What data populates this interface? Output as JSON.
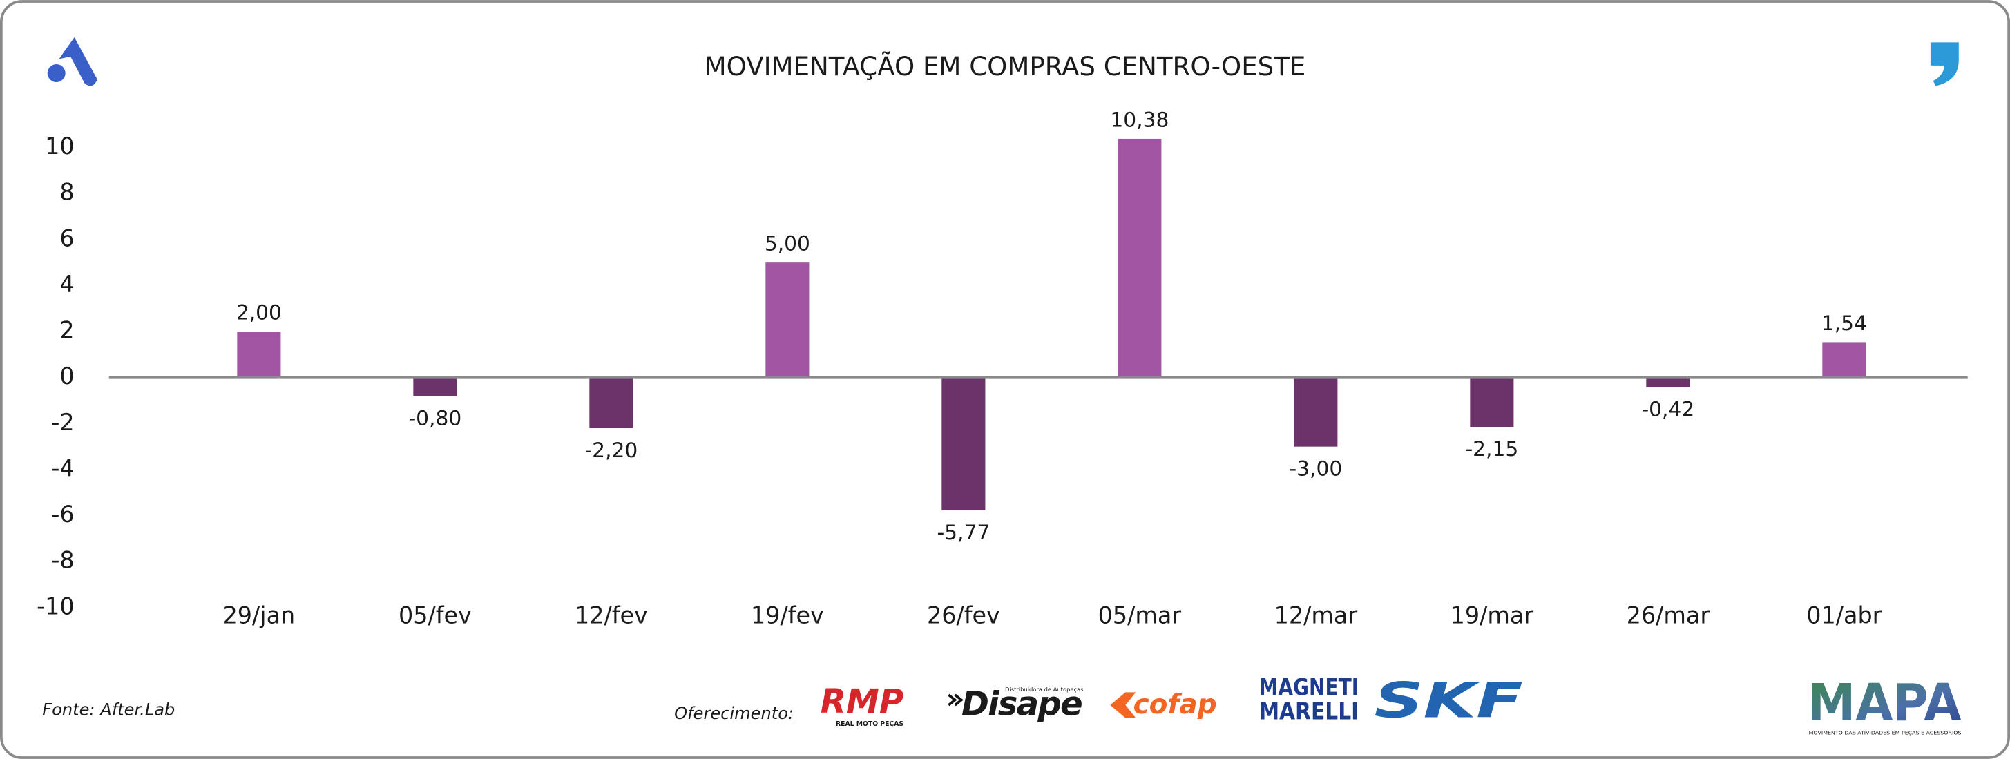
{
  "chart_data": {
    "type": "bar",
    "title": "MOVIMENTAÇÃO EM COMPRAS CENTRO-OESTE",
    "categories": [
      "29/jan",
      "05/fev",
      "12/fev",
      "19/fev",
      "26/fev",
      "05/mar",
      "12/mar",
      "19/mar",
      "26/mar",
      "01/abr"
    ],
    "values": [
      2.0,
      -0.8,
      -2.2,
      5.0,
      -5.77,
      10.38,
      -3.0,
      -2.15,
      -0.42,
      1.54
    ],
    "value_labels": [
      "2,00",
      "-0,80",
      "-2,20",
      "5,00",
      "-5,77",
      "10,38",
      "-3,00",
      "-2,15",
      "-0,42",
      "1,54"
    ],
    "color": "#a155a3",
    "negative_color": "#6b3369",
    "ylim": [
      -10,
      10
    ],
    "yticks": [
      -10,
      -8,
      -6,
      -4,
      -2,
      0,
      2,
      4,
      6,
      8,
      10
    ],
    "grid": false
  },
  "footer": {
    "source": "Fonte: After.Lab",
    "sponsor_label": "Oferecimento:",
    "sponsors": {
      "rmp": "RMP",
      "rmp_sub": "REAL MOTO PEÇAS",
      "disape": "Disape",
      "disape_sub": "Distribuidora de Autopeças",
      "cofap": "cofap",
      "magneti": "MAGNETI",
      "marelli": "MARELLI",
      "skf": "SKF"
    },
    "brand": "MAPA",
    "brand_sub": "MOVIMENTO DAS ATIVIDADES EM PEÇAS E ACESSÓRIOS"
  }
}
